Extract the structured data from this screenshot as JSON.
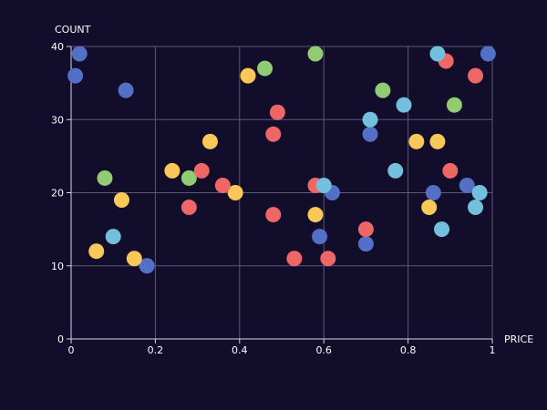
{
  "chart_data": {
    "type": "scatter",
    "title": "",
    "xlabel": "PRICE",
    "ylabel": "COUNT",
    "xlim": [
      0,
      1
    ],
    "ylim": [
      0,
      40
    ],
    "xticks": [
      "0",
      "0.2",
      "0.4",
      "0.6",
      "0.8",
      "1"
    ],
    "xtick_values": [
      0,
      0.2,
      0.4,
      0.6,
      0.8,
      1
    ],
    "yticks": [
      "0",
      "10",
      "20",
      "30",
      "40"
    ],
    "ytick_values": [
      0,
      10,
      20,
      30,
      40
    ],
    "grid": true,
    "legend": "none",
    "series": [
      {
        "color": "#5470c6",
        "points": [
          {
            "x": 0.01,
            "y": 36
          },
          {
            "x": 0.02,
            "y": 39
          },
          {
            "x": 0.13,
            "y": 34
          },
          {
            "x": 0.18,
            "y": 10
          },
          {
            "x": 0.59,
            "y": 14
          },
          {
            "x": 0.62,
            "y": 20
          },
          {
            "x": 0.7,
            "y": 13
          },
          {
            "x": 0.71,
            "y": 28
          },
          {
            "x": 0.86,
            "y": 20
          },
          {
            "x": 0.94,
            "y": 21
          },
          {
            "x": 0.99,
            "y": 39
          }
        ]
      },
      {
        "color": "#91cc75",
        "points": [
          {
            "x": 0.08,
            "y": 22
          },
          {
            "x": 0.28,
            "y": 22
          },
          {
            "x": 0.46,
            "y": 37
          },
          {
            "x": 0.58,
            "y": 39
          },
          {
            "x": 0.74,
            "y": 34
          },
          {
            "x": 0.91,
            "y": 32
          }
        ]
      },
      {
        "color": "#fac858",
        "points": [
          {
            "x": 0.06,
            "y": 12
          },
          {
            "x": 0.12,
            "y": 19
          },
          {
            "x": 0.15,
            "y": 11
          },
          {
            "x": 0.24,
            "y": 23
          },
          {
            "x": 0.33,
            "y": 27
          },
          {
            "x": 0.39,
            "y": 20
          },
          {
            "x": 0.42,
            "y": 36
          },
          {
            "x": 0.58,
            "y": 17
          },
          {
            "x": 0.82,
            "y": 27
          },
          {
            "x": 0.85,
            "y": 18
          },
          {
            "x": 0.87,
            "y": 27
          }
        ]
      },
      {
        "color": "#ee6666",
        "points": [
          {
            "x": 0.28,
            "y": 18
          },
          {
            "x": 0.31,
            "y": 23
          },
          {
            "x": 0.36,
            "y": 21
          },
          {
            "x": 0.48,
            "y": 17
          },
          {
            "x": 0.48,
            "y": 28
          },
          {
            "x": 0.49,
            "y": 31
          },
          {
            "x": 0.53,
            "y": 11
          },
          {
            "x": 0.58,
            "y": 21
          },
          {
            "x": 0.61,
            "y": 11
          },
          {
            "x": 0.7,
            "y": 15
          },
          {
            "x": 0.89,
            "y": 38
          },
          {
            "x": 0.9,
            "y": 23
          },
          {
            "x": 0.96,
            "y": 36
          }
        ]
      },
      {
        "color": "#73c0de",
        "points": [
          {
            "x": 0.1,
            "y": 14
          },
          {
            "x": 0.6,
            "y": 21
          },
          {
            "x": 0.71,
            "y": 30
          },
          {
            "x": 0.77,
            "y": 23
          },
          {
            "x": 0.79,
            "y": 32
          },
          {
            "x": 0.87,
            "y": 39
          },
          {
            "x": 0.88,
            "y": 15
          },
          {
            "x": 0.96,
            "y": 18
          },
          {
            "x": 0.97,
            "y": 20
          }
        ]
      }
    ]
  }
}
